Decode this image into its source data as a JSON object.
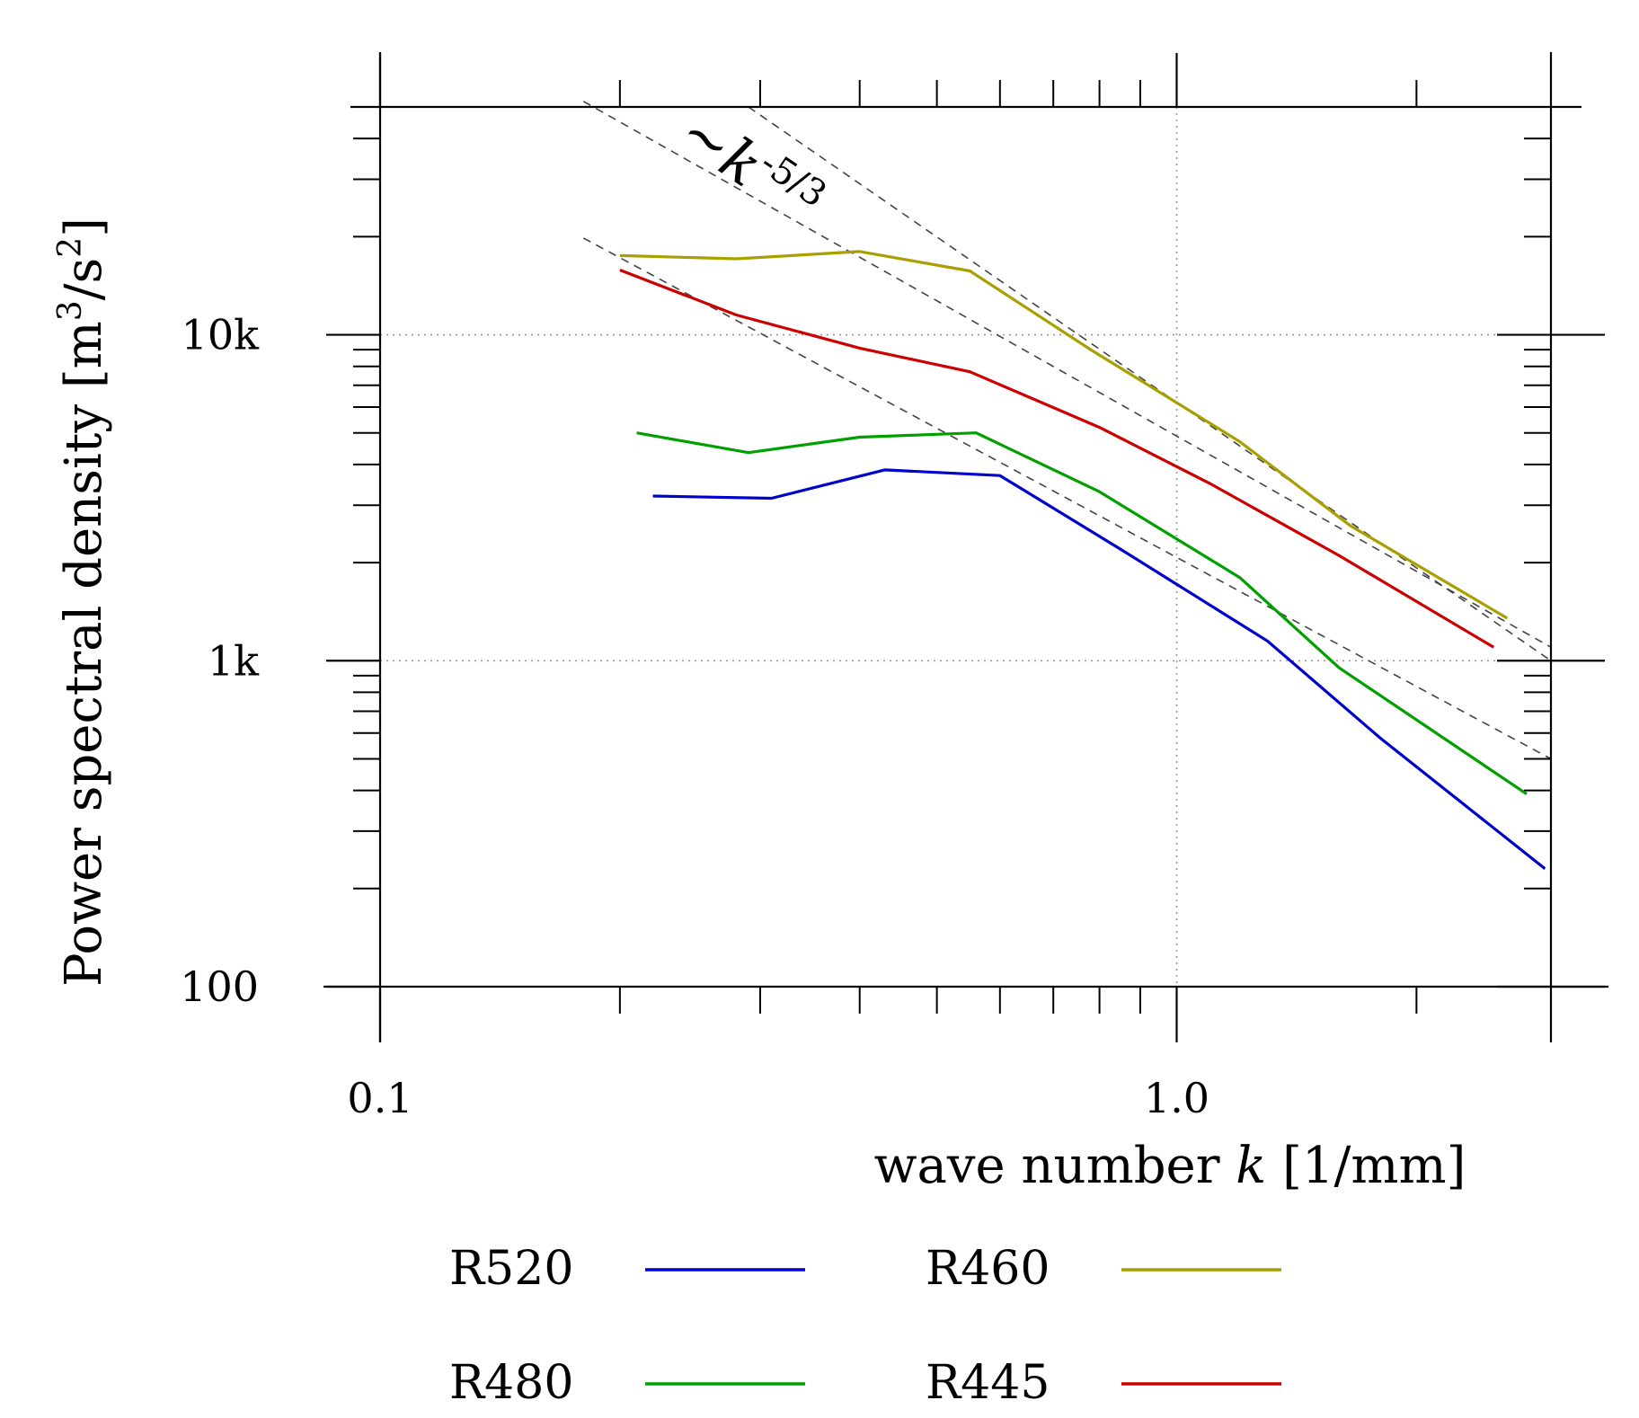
{
  "chart_data": {
    "type": "line",
    "x_scale": "log",
    "y_scale": "log",
    "xlabel": {
      "text": "wave number ",
      "var": "k",
      "unit": " [1/mm]"
    },
    "ylabel": {
      "text": "Power spectral density [m",
      "sup1": "3",
      "mid": "/s",
      "sup2": "2",
      "end": "]"
    },
    "xlim": [
      0.1,
      2.95
    ],
    "ylim": [
      100,
      50000
    ],
    "x_ticks": [
      {
        "value": 0.1,
        "label": "0.1"
      },
      {
        "value": 1.0,
        "label": "1.0"
      }
    ],
    "y_ticks": [
      {
        "value": 100,
        "label": "100"
      },
      {
        "value": 1000,
        "label": "1k"
      },
      {
        "value": 10000,
        "label": "10k"
      }
    ],
    "grid": "dotted at x=1.0, y=1k and y=10k",
    "annotation": {
      "tilde": "~",
      "var": "k",
      "exponent": "-5/3"
    },
    "reference_slope": -1.6667,
    "reference_lines": [
      {
        "x": [
          0.18,
          2.95
        ],
        "y": [
          52000,
          1100
        ]
      },
      {
        "x": [
          0.18,
          2.95
        ],
        "y": [
          19800,
          500
        ]
      },
      {
        "x": [
          0.29,
          2.95
        ],
        "y": [
          50000,
          1000
        ]
      }
    ],
    "series": [
      {
        "name": "R520",
        "color": "#0000cc",
        "x": [
          0.22,
          0.31,
          0.43,
          0.6,
          0.85,
          1.3,
          1.8,
          2.9
        ],
        "y": [
          3200,
          3150,
          3850,
          3700,
          2200,
          1150,
          580,
          230
        ]
      },
      {
        "name": "R480",
        "color": "#00a000",
        "x": [
          0.21,
          0.29,
          0.4,
          0.56,
          0.8,
          1.2,
          1.6,
          2.75
        ],
        "y": [
          5000,
          4350,
          4850,
          5000,
          3300,
          1800,
          950,
          390
        ]
      },
      {
        "name": "R460",
        "color": "#a8a000",
        "x": [
          0.2,
          0.28,
          0.4,
          0.55,
          0.78,
          1.2,
          1.65,
          2.6
        ],
        "y": [
          17500,
          17100,
          18000,
          15700,
          9000,
          4700,
          2600,
          1350
        ]
      },
      {
        "name": "R445",
        "color": "#cc0000",
        "x": [
          0.2,
          0.28,
          0.4,
          0.55,
          0.8,
          1.1,
          1.6,
          2.5
        ],
        "y": [
          15800,
          11500,
          9100,
          7700,
          5200,
          3500,
          2100,
          1100
        ]
      }
    ],
    "legend": {
      "placement": "bottom, two columns"
    }
  }
}
